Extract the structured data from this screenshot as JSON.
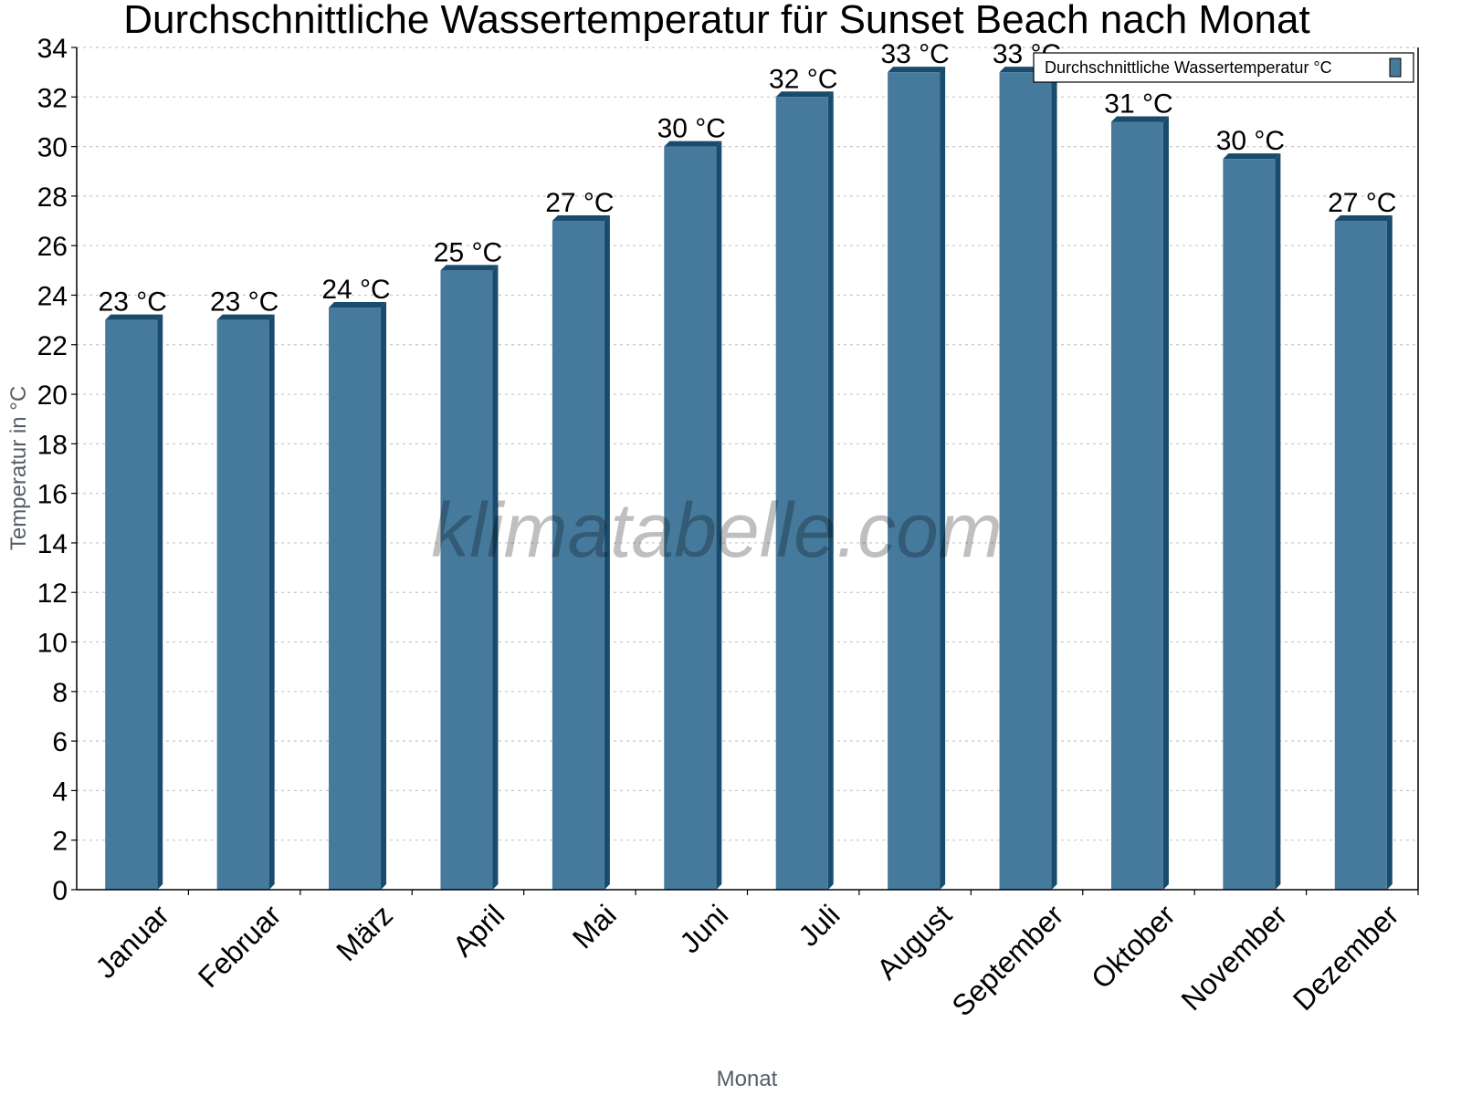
{
  "chart_data": {
    "type": "bar",
    "title": "Durchschnittliche Wassertemperatur für Sunset Beach nach Monat",
    "xlabel": "Monat",
    "ylabel": "Temperatur in °C",
    "categories": [
      "Januar",
      "Februar",
      "März",
      "April",
      "Mai",
      "Juni",
      "Juli",
      "August",
      "September",
      "Oktober",
      "November",
      "Dezember"
    ],
    "series": [
      {
        "name": "Durchschnittliche Wassertemperatur °C",
        "values": [
          23,
          23,
          23.5,
          25,
          27,
          30,
          32,
          33,
          33,
          31,
          29.5,
          27
        ],
        "labels": [
          "23 °C",
          "23 °C",
          "24 °C",
          "25 °C",
          "27 °C",
          "30 °C",
          "32 °C",
          "33 °C",
          "33 °C",
          "31 °C",
          "30 °C",
          "27 °C"
        ]
      }
    ],
    "ylim": [
      0,
      34
    ],
    "yticks": [
      0,
      2,
      4,
      6,
      8,
      10,
      12,
      14,
      16,
      18,
      20,
      22,
      24,
      26,
      28,
      30,
      32,
      34
    ],
    "grid": true,
    "legend_position": "top-right",
    "watermark": "klimatabelle.com",
    "colors": {
      "bar_front": "#467a9c",
      "bar_side": "#194b6c",
      "grid": "#c8c8c8",
      "axis": "#000000"
    }
  }
}
